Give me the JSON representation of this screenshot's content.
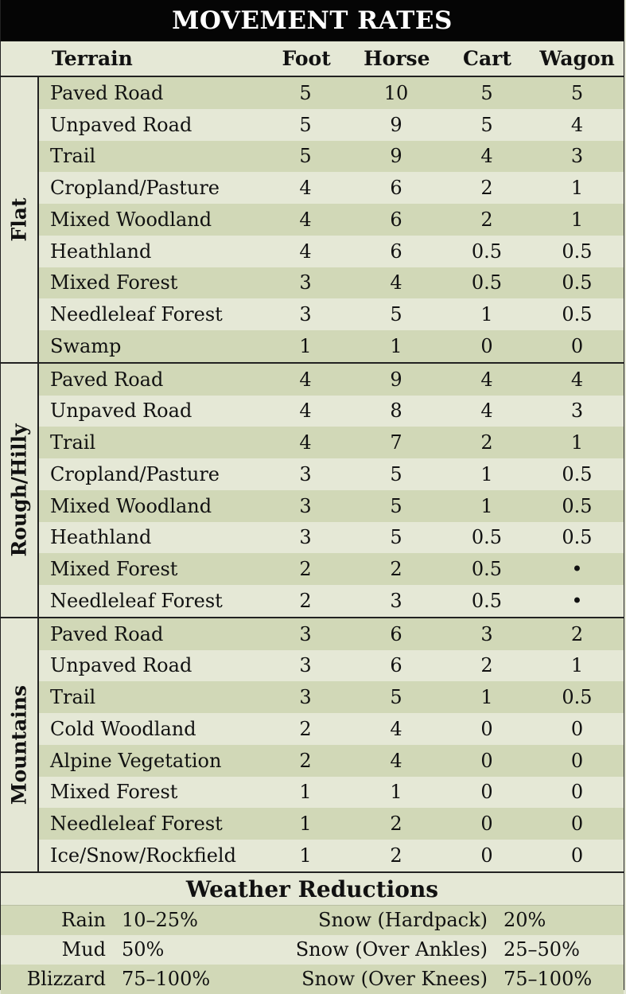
{
  "title": "MOVEMENT RATES",
  "columns": {
    "terrain": "Terrain",
    "foot": "Foot",
    "horse": "Horse",
    "cart": "Cart",
    "wagon": "Wagon"
  },
  "groups": [
    {
      "label": "Flat",
      "rows": [
        [
          "Paved Road",
          "5",
          "10",
          "5",
          "5"
        ],
        [
          "Unpaved Road",
          "5",
          "9",
          "5",
          "4"
        ],
        [
          "Trail",
          "5",
          "9",
          "4",
          "3"
        ],
        [
          "Cropland/Pasture",
          "4",
          "6",
          "2",
          "1"
        ],
        [
          "Mixed Woodland",
          "4",
          "6",
          "2",
          "1"
        ],
        [
          "Heathland",
          "4",
          "6",
          "0.5",
          "0.5"
        ],
        [
          "Mixed Forest",
          "3",
          "4",
          "0.5",
          "0.5"
        ],
        [
          "Needleleaf Forest",
          "3",
          "5",
          "1",
          "0.5"
        ],
        [
          "Swamp",
          "1",
          "1",
          "0",
          "0"
        ]
      ]
    },
    {
      "label": "Rough/Hilly",
      "rows": [
        [
          "Paved Road",
          "4",
          "9",
          "4",
          "4"
        ],
        [
          "Unpaved Road",
          "4",
          "8",
          "4",
          "3"
        ],
        [
          "Trail",
          "4",
          "7",
          "2",
          "1"
        ],
        [
          "Cropland/Pasture",
          "3",
          "5",
          "1",
          "0.5"
        ],
        [
          "Mixed Woodland",
          "3",
          "5",
          "1",
          "0.5"
        ],
        [
          "Heathland",
          "3",
          "5",
          "0.5",
          "0.5"
        ],
        [
          "Mixed Forest",
          "2",
          "2",
          "0.5",
          "•"
        ],
        [
          "Needleleaf Forest",
          "2",
          "3",
          "0.5",
          "•"
        ]
      ]
    },
    {
      "label": "Mountains",
      "rows": [
        [
          "Paved Road",
          "3",
          "6",
          "3",
          "2"
        ],
        [
          "Unpaved Road",
          "3",
          "6",
          "2",
          "1"
        ],
        [
          "Trail",
          "3",
          "5",
          "1",
          "0.5"
        ],
        [
          "Cold Woodland",
          "2",
          "4",
          "0",
          "0"
        ],
        [
          "Alpine Vegetation",
          "2",
          "4",
          "0",
          "0"
        ],
        [
          "Mixed Forest",
          "1",
          "1",
          "0",
          "0"
        ],
        [
          "Needleleaf Forest",
          "1",
          "2",
          "0",
          "0"
        ],
        [
          "Ice/Snow/Rockfield",
          "1",
          "2",
          "0",
          "0"
        ]
      ]
    }
  ],
  "weather": {
    "title": "Weather Reductions",
    "rows": [
      {
        "label1": "Rain",
        "value1": "10–25%",
        "label2": "Snow (Hardpack)",
        "value2": "20%"
      },
      {
        "label1": "Mud",
        "value1": "50%",
        "label2": "Snow (Over Ankles)",
        "value2": "25–50%"
      },
      {
        "label1": "Blizzard",
        "value1": "75–100%",
        "label2": "Snow (Over Knees)",
        "value2": "75–100%"
      }
    ]
  }
}
